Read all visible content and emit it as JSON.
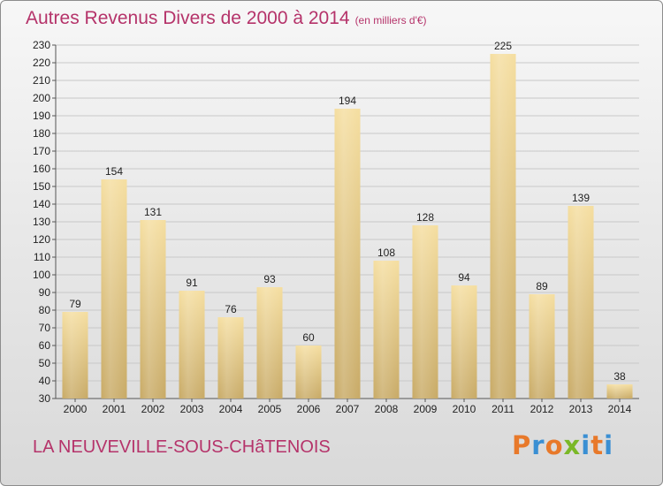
{
  "header": {
    "title": "Autres Revenus Divers de 2000 à 2014",
    "subtitle": "(en milliers d'€)"
  },
  "footer": {
    "commune": "LA NEUVEVILLE-SOUS-CHâTENOIS",
    "logo_text": "Proxiti"
  },
  "colors": {
    "title": "#b5336a",
    "bar_light": "#f5dea0",
    "bar_dark": "#c8aa66",
    "grid": "#c8c8c8",
    "logo_letters": [
      "#e8792a",
      "#3a8fd3",
      "#e8792a",
      "#7ab827",
      "#3a8fd3",
      "#e8792a",
      "#3a8fd3"
    ]
  },
  "chart_data": {
    "type": "bar",
    "categories": [
      "2000",
      "2001",
      "2002",
      "2003",
      "2004",
      "2005",
      "2006",
      "2007",
      "2008",
      "2009",
      "2010",
      "2011",
      "2012",
      "2013",
      "2014"
    ],
    "values": [
      79,
      154,
      131,
      91,
      76,
      93,
      60,
      194,
      108,
      128,
      94,
      225,
      89,
      139,
      38
    ],
    "title": "Autres Revenus Divers de 2000 à 2014",
    "xlabel": "",
    "ylabel": "",
    "ylim": [
      30,
      230
    ],
    "yticks": [
      30,
      40,
      50,
      60,
      70,
      80,
      90,
      100,
      110,
      120,
      130,
      140,
      150,
      160,
      170,
      180,
      190,
      200,
      210,
      220,
      230
    ],
    "grid": true,
    "data_labels": true
  }
}
